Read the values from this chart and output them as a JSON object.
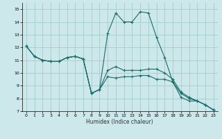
{
  "xlabel": "Humidex (Indice chaleur)",
  "bg_color": "#cce8ea",
  "grid_color": "#aacfcf",
  "line_color": "#1a6b6b",
  "xlim": [
    -0.5,
    23.5
  ],
  "ylim": [
    7,
    15.5
  ],
  "yticks": [
    7,
    8,
    9,
    10,
    11,
    12,
    13,
    14,
    15
  ],
  "xticks": [
    0,
    1,
    2,
    3,
    4,
    5,
    6,
    7,
    8,
    9,
    10,
    11,
    12,
    13,
    14,
    15,
    16,
    17,
    18,
    19,
    20,
    21,
    22,
    23
  ],
  "series_x": [
    0,
    1,
    2,
    3,
    4,
    5,
    6,
    7,
    8,
    9,
    10,
    11,
    12,
    13,
    14,
    15,
    16,
    17,
    18,
    19,
    20,
    21,
    22,
    23
  ],
  "series": [
    [
      12.1,
      11.3,
      11.0,
      10.9,
      10.9,
      11.2,
      11.3,
      11.1,
      8.4,
      8.7,
      13.1,
      14.7,
      14.0,
      14.0,
      14.8,
      14.7,
      12.8,
      11.2,
      9.3,
      8.1,
      7.8,
      7.8,
      7.5,
      7.1
    ],
    [
      12.1,
      11.3,
      11.0,
      10.9,
      10.9,
      11.2,
      11.3,
      11.1,
      8.4,
      8.7,
      10.2,
      10.5,
      10.2,
      10.2,
      10.2,
      10.3,
      10.3,
      10.0,
      9.5,
      8.5,
      8.1,
      7.8,
      7.5,
      7.1
    ],
    [
      12.1,
      11.3,
      11.0,
      10.9,
      10.9,
      11.2,
      11.3,
      11.1,
      8.4,
      8.7,
      9.7,
      9.6,
      9.7,
      9.7,
      9.8,
      9.8,
      9.5,
      9.5,
      9.3,
      8.4,
      8.0,
      7.8,
      7.5,
      7.1
    ]
  ]
}
